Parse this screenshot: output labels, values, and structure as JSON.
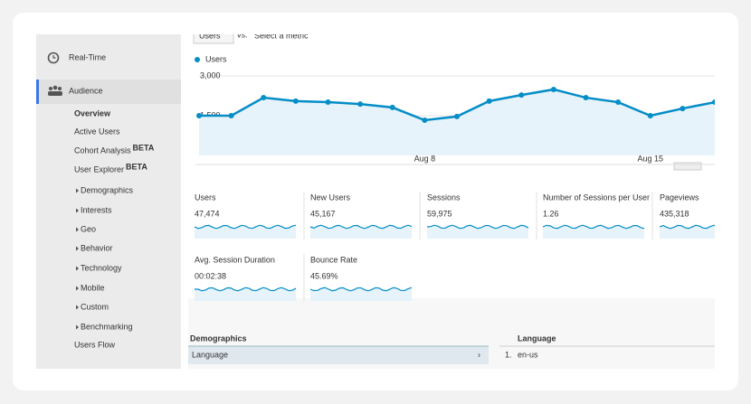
{
  "toolbar": {
    "metric": "Users",
    "vs": "vs.",
    "select": "Select a metric"
  },
  "sidebar": {
    "items": [
      {
        "label": "Real-Time"
      },
      {
        "label": "Audience"
      },
      {
        "label": "Overview"
      },
      {
        "label": "Active Users"
      },
      {
        "label": "Cohort Analysis",
        "badge": "BETA"
      },
      {
        "label": "User Explorer",
        "badge": "BETA"
      },
      {
        "label": "Demographics"
      },
      {
        "label": "Interests"
      },
      {
        "label": "Geo"
      },
      {
        "label": "Behavior"
      },
      {
        "label": "Technology"
      },
      {
        "label": "Mobile"
      },
      {
        "label": "Custom"
      },
      {
        "label": "Benchmarking"
      },
      {
        "label": "Users Flow"
      }
    ]
  },
  "chart_data": {
    "type": "line",
    "categories": [
      null,
      null,
      null,
      null,
      null,
      null,
      null,
      "Aug 8",
      null,
      null,
      null,
      null,
      null,
      null,
      "Aug 15",
      null,
      null
    ],
    "series": [
      {
        "name": "Users",
        "color": "#058dc7",
        "values": [
          1500,
          1500,
          2180,
          2050,
          2010,
          1940,
          1810,
          1330,
          1470,
          2050,
          2280,
          2490,
          2180,
          2010,
          1500,
          1770,
          2010
        ]
      }
    ],
    "ylim": [
      0,
      3000
    ],
    "yticks": [
      {
        "value": 1500,
        "label": "1,500"
      },
      {
        "value": 3000,
        "label": "3,000"
      }
    ],
    "grid": true
  },
  "metrics": [
    {
      "label": "Users",
      "value": "47,474"
    },
    {
      "label": "New Users",
      "value": "45,167"
    },
    {
      "label": "Sessions",
      "value": "59,975"
    },
    {
      "label": "Number of Sessions per User",
      "value": "1.26"
    },
    {
      "label": "Pageviews",
      "value": "435,318"
    },
    {
      "label": "Avg. Session Duration",
      "value": "00:02:38"
    },
    {
      "label": "Bounce Rate",
      "value": "45.69%"
    }
  ],
  "table": {
    "left_header": "Demographics",
    "left_row": "Language",
    "right_header": "Language",
    "rows": [
      {
        "rank": "1.",
        "label": "en-us"
      }
    ]
  }
}
